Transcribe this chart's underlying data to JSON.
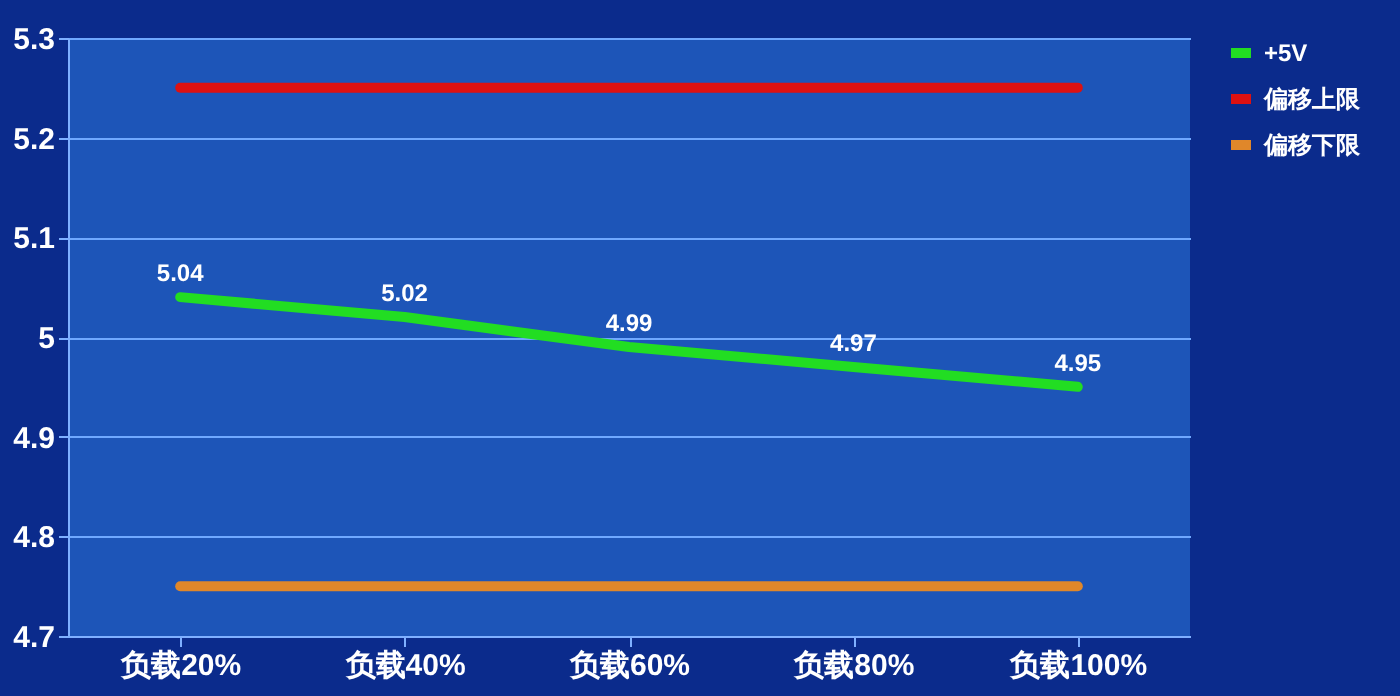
{
  "chart_data": {
    "type": "line",
    "categories": [
      "负载20%",
      "负载40%",
      "负载60%",
      "负载80%",
      "负载100%"
    ],
    "series": [
      {
        "name": "+5V",
        "color": "#22dd22",
        "values": [
          5.04,
          5.02,
          4.99,
          4.97,
          4.95
        ],
        "value_labels": [
          "5.04",
          "5.02",
          "4.99",
          "4.97",
          "4.95"
        ]
      },
      {
        "name": "偏移上限",
        "color": "#dd1111",
        "values": [
          5.25,
          5.25,
          5.25,
          5.25,
          5.25
        ]
      },
      {
        "name": "偏移下限",
        "color": "#e0872a",
        "values": [
          4.75,
          4.75,
          4.75,
          4.75,
          4.75
        ]
      }
    ],
    "ylim": [
      4.7,
      5.3
    ],
    "yticks": [
      4.7,
      4.8,
      4.9,
      5,
      5.1,
      5.2,
      5.3
    ],
    "grid": "y",
    "legend": "right",
    "marker": "none",
    "line_style": "solid"
  }
}
